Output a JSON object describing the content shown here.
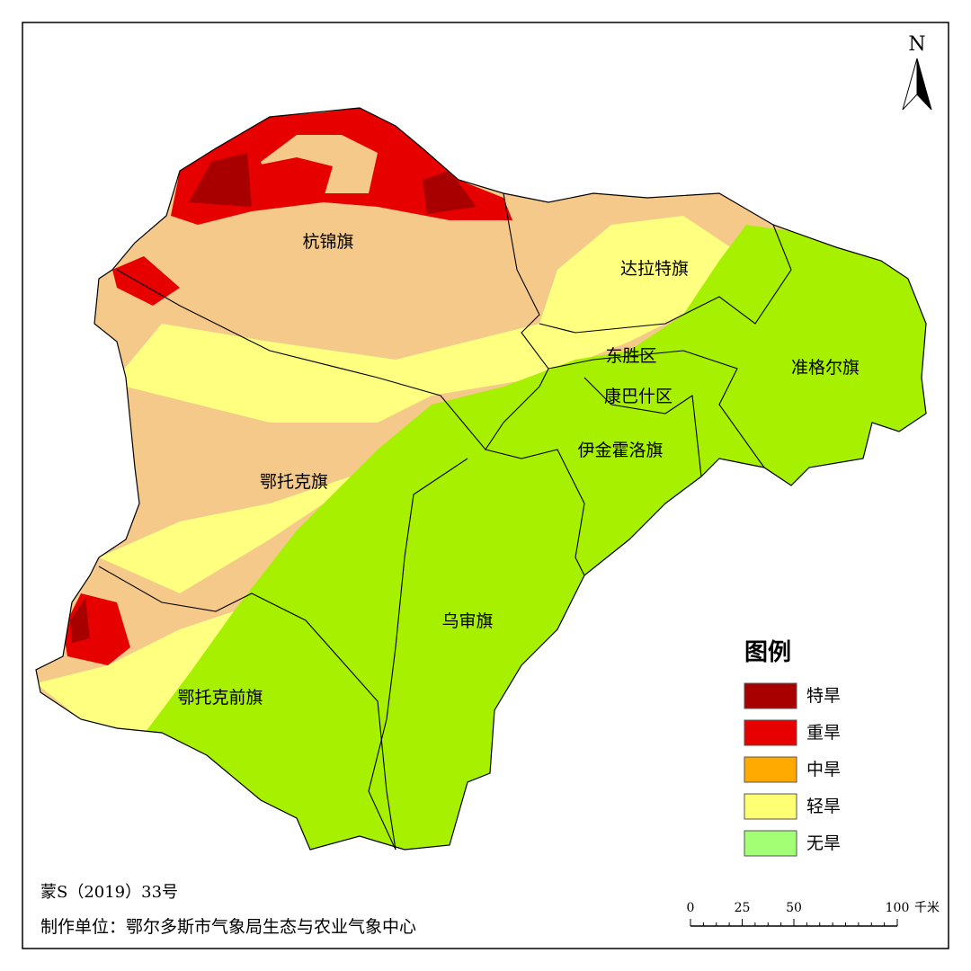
{
  "north_label": "N",
  "regions": [
    {
      "name": "杭锦旗"
    },
    {
      "name": "达拉特旗"
    },
    {
      "name": "东胜区"
    },
    {
      "name": "准格尔旗"
    },
    {
      "name": "康巴什区"
    },
    {
      "name": "伊金霍洛旗"
    },
    {
      "name": "鄂托克旗"
    },
    {
      "name": "乌审旗"
    },
    {
      "name": "鄂托克前旗"
    }
  ],
  "legend": {
    "title": "图例",
    "items": [
      {
        "label": "特旱",
        "color": "#a80000"
      },
      {
        "label": "重旱",
        "color": "#e60000"
      },
      {
        "label": "中旱",
        "color": "#ffaa00"
      },
      {
        "label": "轻旱",
        "color": "#ffff73"
      },
      {
        "label": "无旱",
        "color": "#a3ff73"
      }
    ]
  },
  "scale_bar": {
    "ticks": [
      0,
      25,
      50,
      100
    ],
    "unit": "千米"
  },
  "footer": {
    "approval_number": "蒙S（2019）33号",
    "producer": "制作单位：鄂尔多斯市气象局生态与农业气象中心"
  }
}
